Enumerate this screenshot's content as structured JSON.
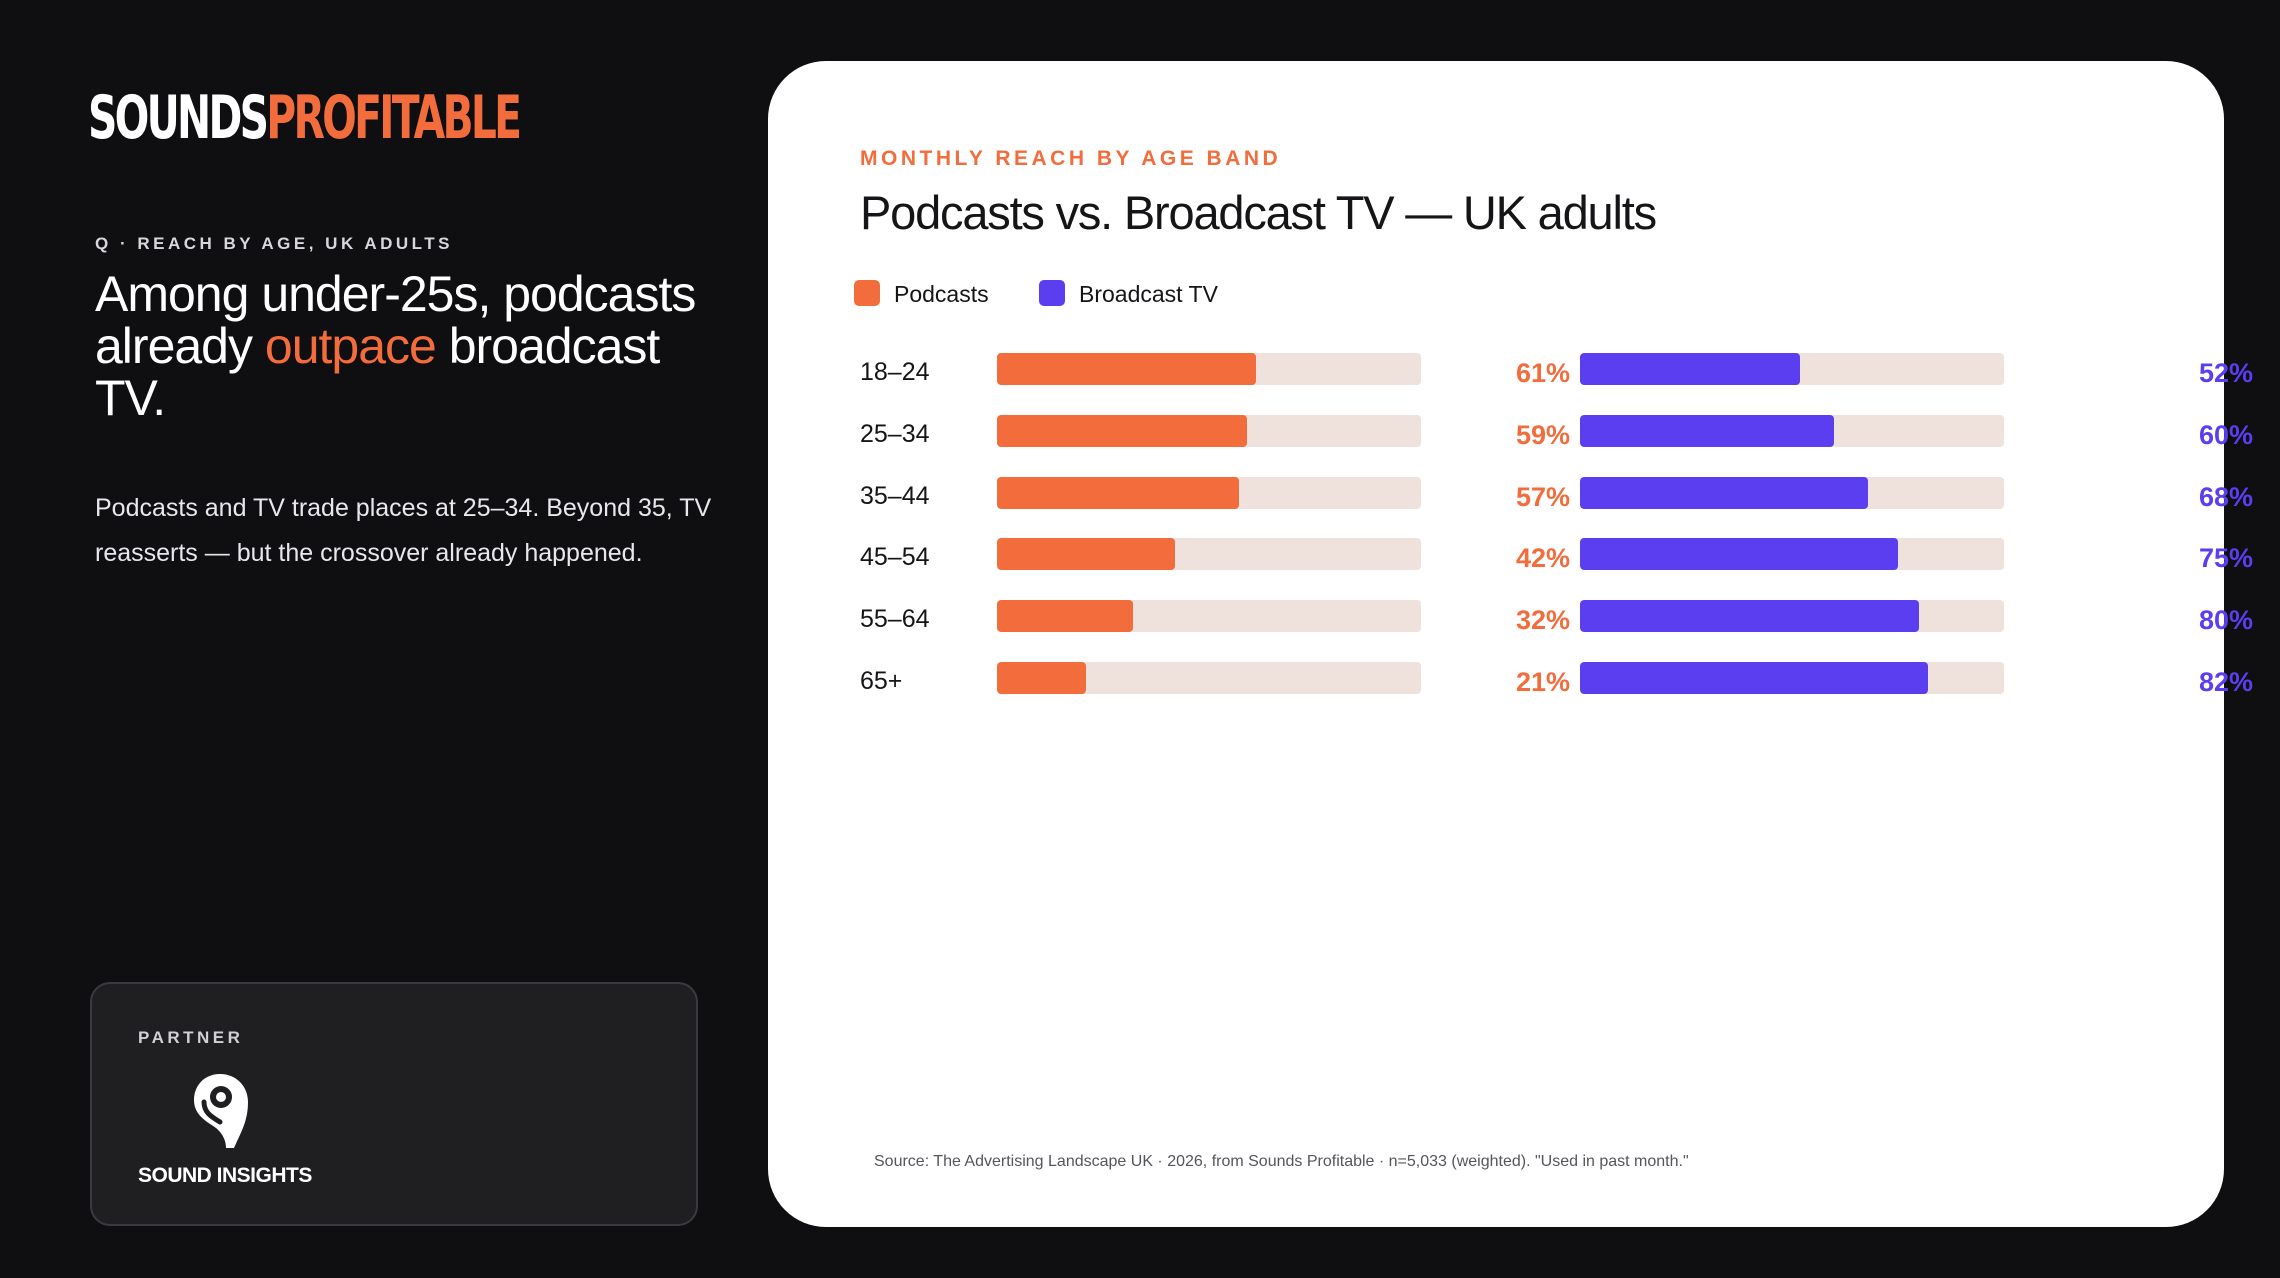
{
  "brand": {
    "logo_part1": "SOUNDS",
    "logo_part2": "PROFITABLE"
  },
  "left": {
    "eyebrow": "Q · REACH BY AGE, UK ADULTS",
    "headline_part1": "Among under-25s, podcasts already ",
    "headline_highlight": "outpace",
    "headline_part2": " broadcast TV.",
    "body": "Podcasts and TV trade places at 25–34. Beyond 35, TV reasserts — but the crossover already happened."
  },
  "partner": {
    "label": "PARTNER",
    "name": "SOUND INSIGHTS",
    "icon": "sound-insights-logo"
  },
  "colors": {
    "podcasts": "#f26c3c",
    "broadcast_tv": "#5a3ef0",
    "track": "#efe2dc",
    "background": "#0f0f12",
    "card": "#ffffff"
  },
  "chart_data": {
    "type": "bar",
    "orientation": "horizontal",
    "eyebrow": "MONTHLY REACH BY AGE BAND",
    "title": "Podcasts vs. Broadcast TV — UK adults",
    "categories": [
      "18–24",
      "25–34",
      "35–44",
      "45–54",
      "55–64",
      "65+"
    ],
    "series": [
      {
        "name": "Podcasts",
        "values": [
          61,
          59,
          57,
          42,
          32,
          21
        ],
        "labels": [
          "61%",
          "59%",
          "57%",
          "42%",
          "32%",
          "21%"
        ],
        "color": "#f26c3c"
      },
      {
        "name": "Broadcast TV",
        "values": [
          52,
          60,
          68,
          75,
          80,
          82
        ],
        "labels": [
          "52%",
          "60%",
          "68%",
          "75%",
          "80%",
          "82%"
        ],
        "color": "#5a3ef0"
      }
    ],
    "xlim": [
      0,
      100
    ],
    "unit": "%",
    "grid": false,
    "legend_position": "top-left",
    "source": "Source: The Advertising Landscape UK · 2026, from Sounds Profitable · n=5,033 (weighted). \"Used in past month.\""
  }
}
